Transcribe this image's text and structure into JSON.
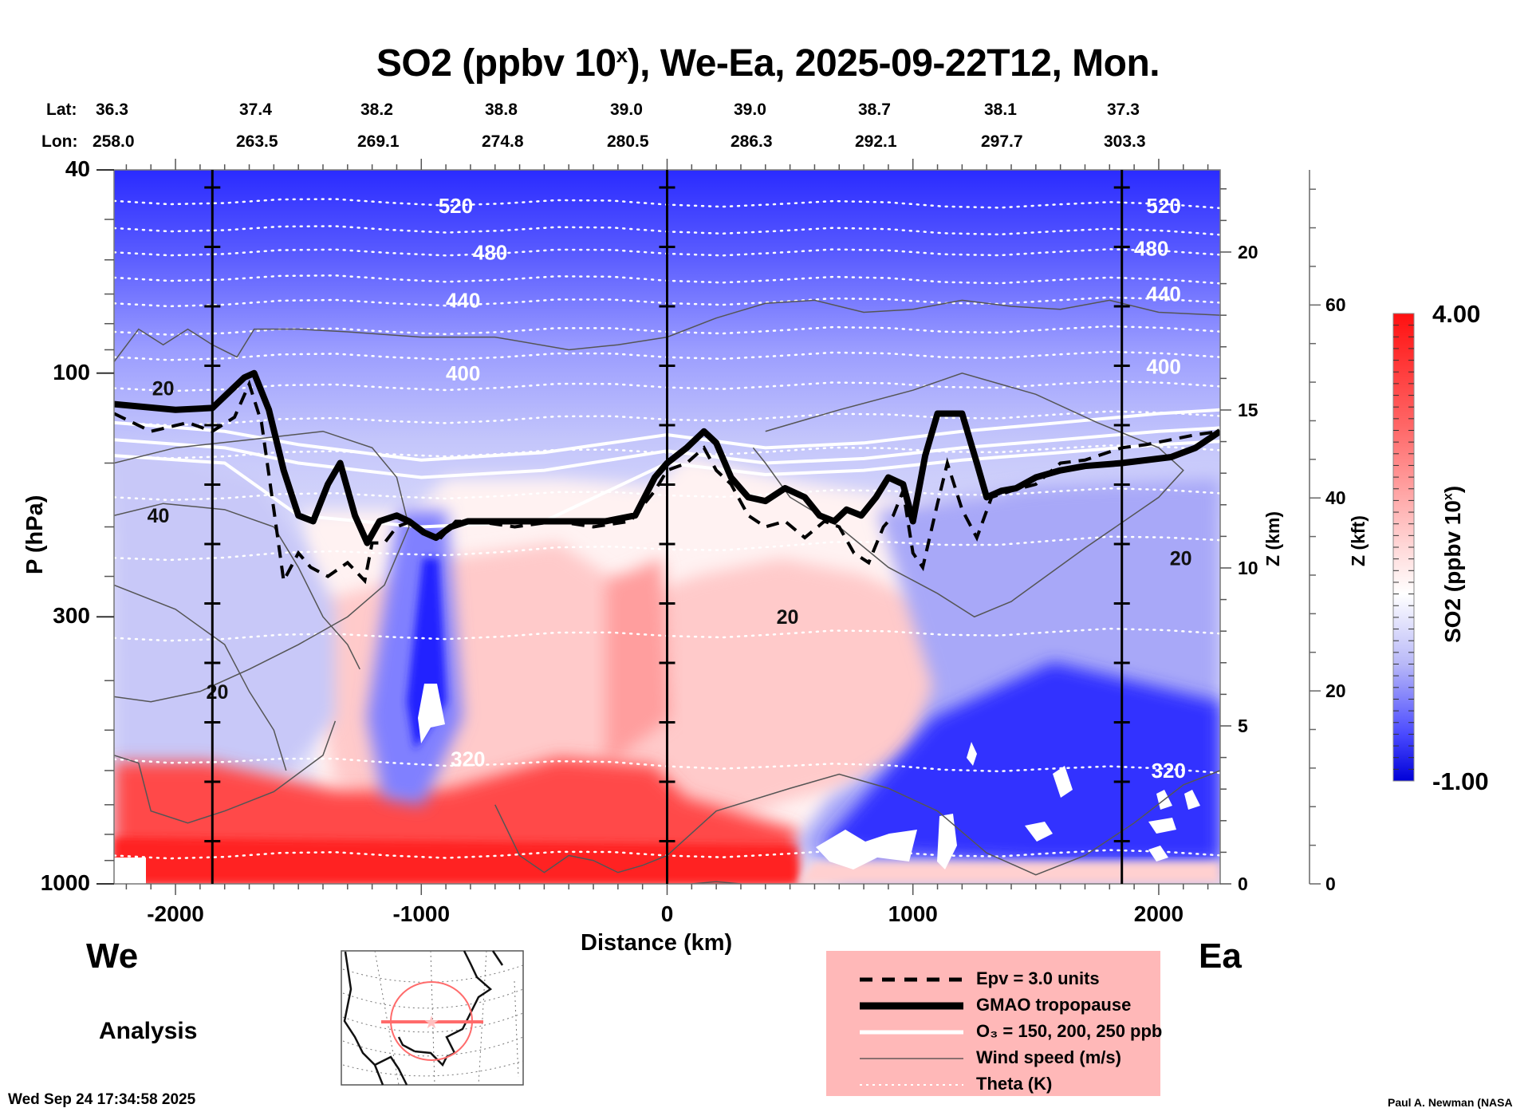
{
  "title": {
    "main": "SO2 (ppbv 10",
    "sup": "x",
    "rest": "), We-Ea, 2025-09-22T12, Mon."
  },
  "lat_label": "Lat:",
  "lon_label": "Lon:",
  "lats": [
    "36.3",
    "37.4",
    "38.2",
    "38.8",
    "39.0",
    "39.0",
    "38.7",
    "38.1",
    "37.3"
  ],
  "lons": [
    "258.0",
    "263.5",
    "269.1",
    "274.8",
    "280.5",
    "286.3",
    "292.1",
    "297.7",
    "303.3"
  ],
  "side_labels": {
    "west": "We",
    "east": "Ea",
    "mode": "Analysis"
  },
  "footer": {
    "date": "Wed Sep 24 17:34:58 2025",
    "author": "Paul A. Newman (NASA"
  },
  "colors": {
    "low": "#0000ff",
    "mid": "#ffffff",
    "high": "#ff0000",
    "legend_bg": "#ffb8b8"
  },
  "legend": [
    {
      "style": "dashed",
      "label": "Epv = 3.0 units"
    },
    {
      "style": "thick",
      "label": "GMAO tropopause"
    },
    {
      "style": "white",
      "label": "O₃ = 150, 200, 250 ppb"
    },
    {
      "style": "thin",
      "label": "Wind speed (m/s)"
    },
    {
      "style": "dotted",
      "label": "Theta (K)"
    }
  ],
  "chart_data": {
    "type": "heatmap",
    "title": "SO2 (ppbv 10^x), We-Ea, 2025-09-22T12, Mon.",
    "xlabel": "Distance (km)",
    "ylabel": "P (hPa)",
    "ylabel_right_km": "Z (km)",
    "ylabel_right_kft": "Z (kft)",
    "colorbar_label": "SO2 (ppbv 10^x)",
    "colorbar_range": [
      -1.0,
      4.0
    ],
    "colorbar_ticks": [
      "4.00",
      "-1.00"
    ],
    "xlim": [
      -2250,
      2250
    ],
    "x_ticks": [
      -2000,
      -1000,
      0,
      1000,
      2000
    ],
    "x_tick_labels": [
      "-2000",
      "-1000",
      "0",
      "1000",
      "2000"
    ],
    "ylim_hPa": [
      1000,
      40
    ],
    "y_ticks_hPa": [
      40,
      100,
      300,
      1000
    ],
    "y_tick_labels": [
      "40",
      "100",
      "300",
      "1000"
    ],
    "z_km_ticks": [
      0,
      5,
      10,
      15,
      20
    ],
    "z_km_tick_labels": [
      "0",
      "5",
      "10",
      "15",
      "20"
    ],
    "z_kft_ticks": [
      0,
      20,
      40,
      60
    ],
    "z_kft_tick_labels": [
      "0",
      "20",
      "40",
      "60"
    ],
    "vertical_markers_km": [
      -1850,
      0,
      1850
    ],
    "theta_levels_labeled": [
      {
        "label": "520",
        "x": -860,
        "p": 47
      },
      {
        "label": "480",
        "x": -720,
        "p": 58
      },
      {
        "label": "440",
        "x": -830,
        "p": 72
      },
      {
        "label": "400",
        "x": -830,
        "p": 100
      },
      {
        "label": "320",
        "x": -810,
        "p": 570
      },
      {
        "label": "520",
        "x": 2020,
        "p": 47
      },
      {
        "label": "480",
        "x": 1970,
        "p": 57
      },
      {
        "label": "440",
        "x": 2020,
        "p": 70
      },
      {
        "label": "400",
        "x": 2020,
        "p": 97
      },
      {
        "label": "320",
        "x": 2040,
        "p": 600
      }
    ],
    "wind_labels": [
      {
        "label": "20",
        "x": -2050,
        "p": 107
      },
      {
        "label": "40",
        "x": -2070,
        "p": 190
      },
      {
        "label": "20",
        "x": -1830,
        "p": 420
      },
      {
        "label": "20",
        "x": 490,
        "p": 300
      },
      {
        "label": "20",
        "x": 2090,
        "p": 230
      }
    ],
    "tropopause": {
      "x": [
        -2250,
        -2000,
        -1850,
        -1720,
        -1680,
        -1620,
        -1560,
        -1500,
        -1440,
        -1380,
        -1330,
        -1270,
        -1220,
        -1170,
        -1100,
        -1050,
        -990,
        -940,
        -880,
        -810,
        -700,
        -560,
        -400,
        -250,
        -130,
        -50,
        0,
        80,
        150,
        200,
        260,
        330,
        400,
        480,
        560,
        620,
        680,
        730,
        790,
        850,
        900,
        960,
        1000,
        1050,
        1100,
        1140,
        1200,
        1260,
        1300,
        1360,
        1420,
        1500,
        1600,
        1700,
        1850,
        1950,
        2050,
        2150,
        2250
      ],
      "p": [
        115,
        118,
        117,
        102,
        100,
        118,
        155,
        190,
        195,
        165,
        150,
        190,
        215,
        195,
        190,
        195,
        205,
        210,
        200,
        195,
        195,
        195,
        195,
        195,
        190,
        160,
        150,
        140,
        130,
        137,
        160,
        175,
        178,
        168,
        175,
        190,
        195,
        185,
        190,
        175,
        160,
        165,
        195,
        145,
        120,
        120,
        120,
        150,
        175,
        170,
        168,
        160,
        155,
        152,
        150,
        148,
        146,
        140,
        130
      ]
    },
    "epv_3pvu": {
      "x": [
        -2250,
        -2100,
        -1950,
        -1850,
        -1760,
        -1700,
        -1650,
        -1600,
        -1560,
        -1500,
        -1450,
        -1380,
        -1300,
        -1230,
        -1200,
        -1150,
        -1100,
        -1040,
        -980,
        -920,
        -860,
        -780,
        -620,
        -450,
        -300,
        -150,
        -50,
        0,
        80,
        150,
        200,
        260,
        330,
        400,
        480,
        560,
        640,
        700,
        760,
        820,
        880,
        920,
        960,
        1000,
        1040,
        1100,
        1140,
        1200,
        1260,
        1320,
        1400,
        1500,
        1600,
        1700,
        1850,
        1950,
        2050,
        2150,
        2250
      ],
      "p": [
        120,
        130,
        125,
        130,
        122,
        105,
        125,
        185,
        255,
        225,
        240,
        250,
        235,
        255,
        215,
        215,
        200,
        195,
        205,
        210,
        195,
        195,
        200,
        195,
        200,
        195,
        170,
        155,
        150,
        140,
        155,
        165,
        190,
        200,
        195,
        210,
        195,
        200,
        225,
        235,
        200,
        190,
        170,
        225,
        240,
        180,
        150,
        185,
        210,
        175,
        170,
        165,
        150,
        148,
        140,
        138,
        135,
        132,
        130
      ]
    },
    "note": "Color field: SO2 log10 ppbv; stratosphere mostly blue (negative values), lower troposphere red (3-4) west of ~1000 km, blue near surface east of ~600 km with white (below range) patches."
  }
}
